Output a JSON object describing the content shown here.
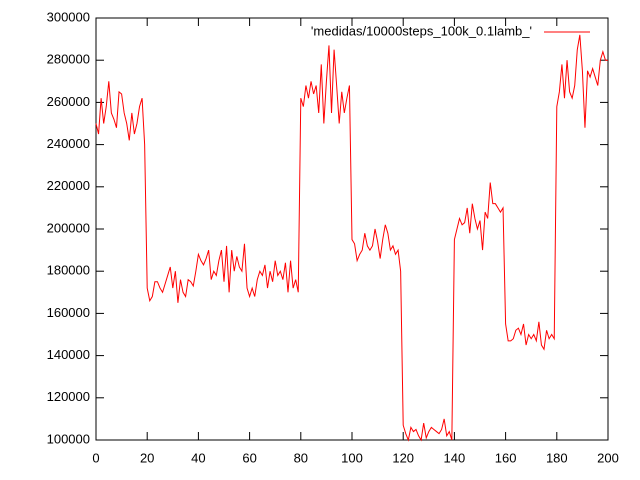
{
  "chart_data": {
    "type": "line",
    "x": [
      0,
      1,
      2,
      3,
      4,
      5,
      6,
      7,
      8,
      9,
      10,
      11,
      12,
      13,
      14,
      15,
      16,
      17,
      18,
      19,
      20,
      21,
      22,
      23,
      24,
      25,
      26,
      27,
      28,
      29,
      30,
      31,
      32,
      33,
      34,
      35,
      36,
      37,
      38,
      39,
      40,
      41,
      42,
      43,
      44,
      45,
      46,
      47,
      48,
      49,
      50,
      51,
      52,
      53,
      54,
      55,
      56,
      57,
      58,
      59,
      60,
      61,
      62,
      63,
      64,
      65,
      66,
      67,
      68,
      69,
      70,
      71,
      72,
      73,
      74,
      75,
      76,
      77,
      78,
      79,
      80,
      81,
      82,
      83,
      84,
      85,
      86,
      87,
      88,
      89,
      90,
      91,
      92,
      93,
      94,
      95,
      96,
      97,
      98,
      99,
      100,
      101,
      102,
      103,
      104,
      105,
      106,
      107,
      108,
      109,
      110,
      111,
      112,
      113,
      114,
      115,
      116,
      117,
      118,
      119,
      120,
      121,
      122,
      123,
      124,
      125,
      126,
      127,
      128,
      129,
      130,
      131,
      132,
      133,
      134,
      135,
      136,
      137,
      138,
      139,
      140,
      141,
      142,
      143,
      144,
      145,
      146,
      147,
      148,
      149,
      150,
      151,
      152,
      153,
      154,
      155,
      156,
      157,
      158,
      159,
      160,
      161,
      162,
      163,
      164,
      165,
      166,
      167,
      168,
      169,
      170,
      171,
      172,
      173,
      174,
      175,
      176,
      177,
      178,
      179,
      180,
      181,
      182,
      183,
      184,
      185,
      186,
      187,
      188,
      189,
      190,
      191,
      192,
      193,
      194,
      195,
      196,
      197,
      198,
      199,
      200
    ],
    "series": [
      {
        "name": "'medidas/10000steps_100k_0.1lamb_'",
        "color": "#ff0000",
        "values": [
          250000,
          245000,
          262000,
          250000,
          258000,
          270000,
          255000,
          252000,
          248000,
          265000,
          264000,
          255000,
          250000,
          242000,
          255000,
          245000,
          250000,
          258000,
          262000,
          240000,
          172000,
          166000,
          168000,
          175000,
          175000,
          172000,
          170000,
          174000,
          178000,
          182000,
          172000,
          180000,
          165000,
          176000,
          170000,
          168000,
          176000,
          175000,
          173000,
          180000,
          188000,
          185000,
          183000,
          186000,
          190000,
          176000,
          180000,
          178000,
          185000,
          190000,
          175000,
          192000,
          170000,
          190000,
          180000,
          187000,
          182000,
          180000,
          193000,
          172000,
          168000,
          172000,
          168000,
          176000,
          180000,
          178000,
          183000,
          172000,
          180000,
          175000,
          185000,
          178000,
          180000,
          176000,
          184000,
          170000,
          185000,
          172000,
          176000,
          170000,
          262000,
          258000,
          268000,
          262000,
          270000,
          264000,
          268000,
          255000,
          278000,
          250000,
          270000,
          287000,
          255000,
          285000,
          268000,
          250000,
          265000,
          255000,
          262000,
          268000,
          195000,
          193000,
          185000,
          188000,
          190000,
          198000,
          192000,
          190000,
          192000,
          200000,
          194000,
          186000,
          195000,
          202000,
          198000,
          190000,
          192000,
          188000,
          190000,
          180000,
          107000,
          103000,
          100000,
          106000,
          104000,
          105000,
          102000,
          100000,
          108000,
          101000,
          104000,
          106000,
          105000,
          104000,
          103000,
          105000,
          110000,
          102000,
          104000,
          100000,
          195000,
          200000,
          205000,
          202000,
          203000,
          210000,
          198000,
          212000,
          205000,
          200000,
          204000,
          190000,
          208000,
          205000,
          222000,
          212000,
          212000,
          210000,
          208000,
          210000,
          155000,
          147000,
          147000,
          148000,
          152000,
          153000,
          150000,
          155000,
          145000,
          150000,
          148000,
          150000,
          147000,
          156000,
          145000,
          143000,
          152000,
          148000,
          150000,
          148000,
          258000,
          265000,
          278000,
          262000,
          280000,
          265000,
          262000,
          268000,
          285000,
          292000,
          275000,
          248000,
          275000,
          272000,
          276000,
          272000,
          268000,
          280000,
          284000,
          280000,
          280000
        ]
      }
    ],
    "xlim": [
      0,
      200
    ],
    "xticks": [
      0,
      20,
      40,
      60,
      80,
      100,
      120,
      140,
      160,
      180,
      200
    ],
    "ylim": [
      100000,
      300000
    ],
    "yticks": [
      100000,
      120000,
      140000,
      160000,
      180000,
      200000,
      220000,
      240000,
      260000,
      280000,
      300000
    ],
    "legend": "top-right",
    "grid": false
  }
}
